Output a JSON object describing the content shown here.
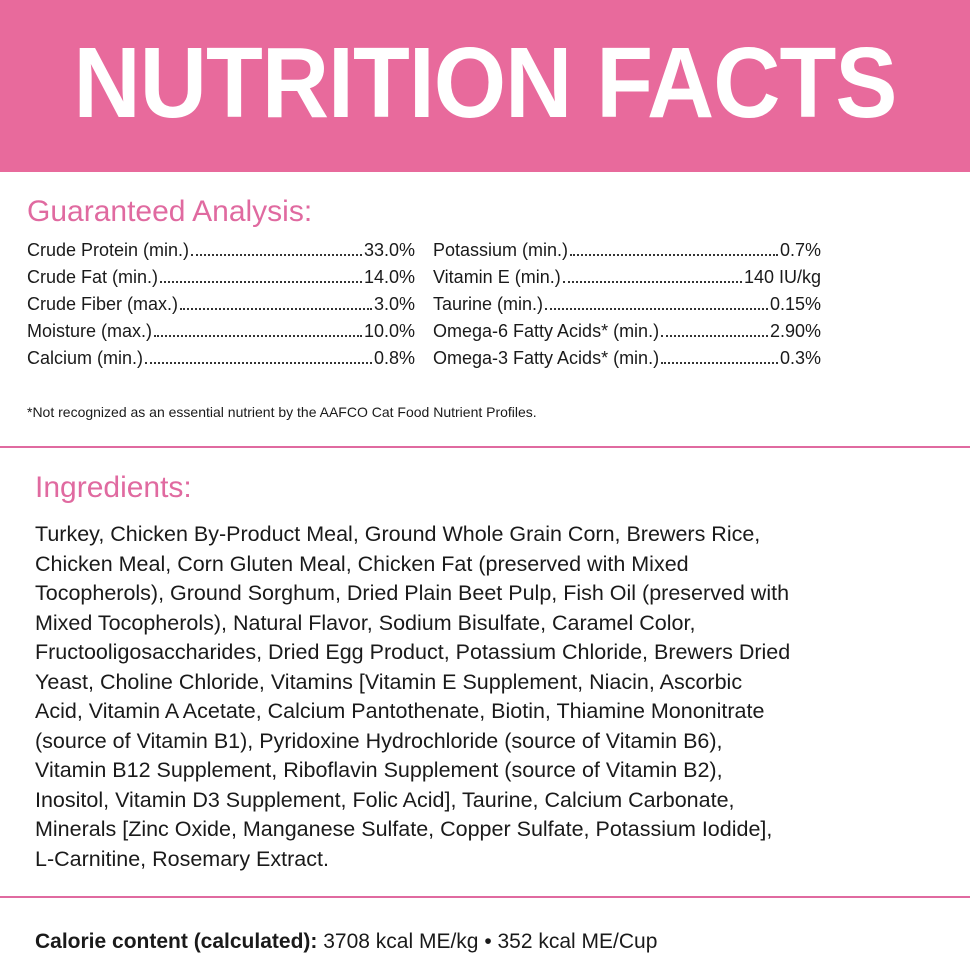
{
  "header": {
    "title": "NUTRITION FACTS"
  },
  "analysis": {
    "title": "Guaranteed Analysis:",
    "left": [
      {
        "label": "Crude Protein (min.)",
        "value": "33.0%"
      },
      {
        "label": "Crude Fat (min.)",
        "value": "14.0%"
      },
      {
        "label": "Crude Fiber (max.)",
        "value": "3.0%"
      },
      {
        "label": "Moisture (max.)",
        "value": "10.0%"
      },
      {
        "label": "Calcium (min.)",
        "value": "0.8%"
      }
    ],
    "right": [
      {
        "label": "Potassium (min.)",
        "value": "0.7%"
      },
      {
        "label": "Vitamin E (min.)",
        "value": "140 IU/kg"
      },
      {
        "label": "Taurine (min.)",
        "value": "0.15%"
      },
      {
        "label": "Omega-6 Fatty Acids* (min.)",
        "value": "2.90%"
      },
      {
        "label": "Omega-3 Fatty Acids* (min.)",
        "value": "0.3%"
      }
    ],
    "footnote": "*Not recognized as an essential nutrient by the AAFCO Cat Food Nutrient Profiles."
  },
  "ingredients": {
    "title": "Ingredients:",
    "lines": [
      "Turkey, Chicken By-Product Meal, Ground Whole Grain Corn, Brewers Rice,",
      "Chicken Meal, Corn Gluten Meal, Chicken Fat (preserved with Mixed",
      "Tocopherols), Ground Sorghum, Dried Plain Beet Pulp, Fish Oil (preserved with",
      "Mixed Tocopherols), Natural Flavor, Sodium Bisulfate, Caramel Color,",
      "Fructooligosaccharides, Dried Egg Product, Potassium Chloride, Brewers Dried",
      "Yeast, Choline Chloride, Vitamins [Vitamin E Supplement, Niacin, Ascorbic",
      "Acid, Vitamin A Acetate, Calcium Pantothenate, Biotin, Thiamine Mononitrate",
      "(source of Vitamin B1), Pyridoxine Hydrochloride (source of Vitamin B6),",
      "Vitamin B12 Supplement, Riboflavin Supplement (source of Vitamin B2),",
      "Inositol, Vitamin D3 Supplement, Folic Acid], Taurine, Calcium Carbonate,",
      "Minerals [Zinc Oxide, Manganese Sulfate, Copper Sulfate, Potassium Iodide],",
      "L-Carnitine, Rosemary Extract."
    ]
  },
  "calorie": {
    "label": "Calorie content (calculated):",
    "value": "3708 kcal ME/kg • 352 kcal ME/Cup"
  }
}
